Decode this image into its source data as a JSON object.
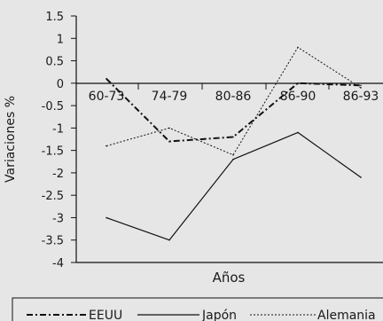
{
  "chart_data": {
    "type": "line",
    "title": "",
    "xlabel": "Años",
    "ylabel": "Variaciones %",
    "categories": [
      "60-73",
      "74-79",
      "80-86",
      "86-90",
      "86-93"
    ],
    "ylim": [
      -4,
      1.5
    ],
    "yticks": [
      "1.5",
      "1",
      "0.5",
      "0",
      "-0.5",
      "-1",
      "-1.5",
      "-2",
      "-2.5",
      "-3",
      "-3.5",
      "-4"
    ],
    "grid": false,
    "legend_position": "bottom",
    "series": [
      {
        "name": "EEUU",
        "style": "dash-dot",
        "color": "#111111",
        "values": [
          0.1,
          -1.3,
          -1.2,
          0.0,
          -0.05
        ]
      },
      {
        "name": "Japón",
        "style": "solid",
        "color": "#111111",
        "values": [
          -3.0,
          -3.5,
          -1.7,
          -1.1,
          -2.1
        ]
      },
      {
        "name": "Alemania",
        "style": "dotted",
        "color": "#111111",
        "values": [
          -1.4,
          -1.0,
          -1.6,
          0.8,
          -0.1
        ]
      }
    ]
  }
}
